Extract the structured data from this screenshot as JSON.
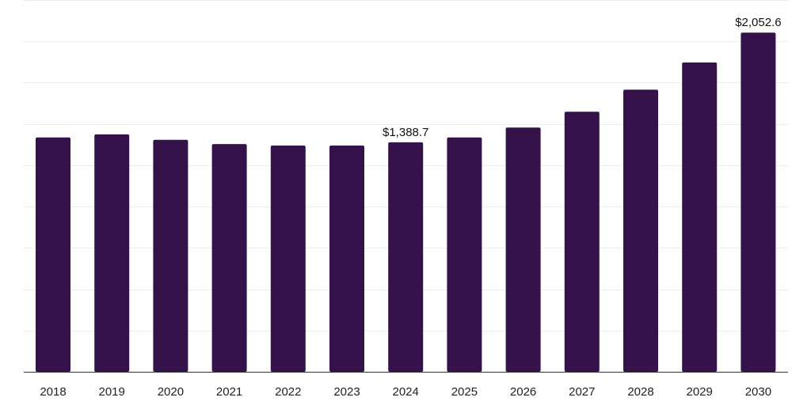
{
  "chart_data": {
    "type": "bar",
    "categories": [
      "2018",
      "2019",
      "2020",
      "2021",
      "2022",
      "2023",
      "2024",
      "2025",
      "2026",
      "2027",
      "2028",
      "2029",
      "2030"
    ],
    "series": [
      {
        "values": [
          1418,
          1437,
          1404,
          1378,
          1369,
          1369,
          1388.7,
          1418,
          1478,
          1574,
          1707,
          1872,
          2052.6
        ],
        "color": "#36124a"
      }
    ],
    "data_labels": [
      {
        "category": "2024",
        "text": "$1,388.7"
      },
      {
        "category": "2030",
        "text": "$2,052.6"
      }
    ],
    "ylim": [
      0,
      2250
    ],
    "grid": true,
    "legend": "none",
    "xlabel": "",
    "ylabel": ""
  }
}
